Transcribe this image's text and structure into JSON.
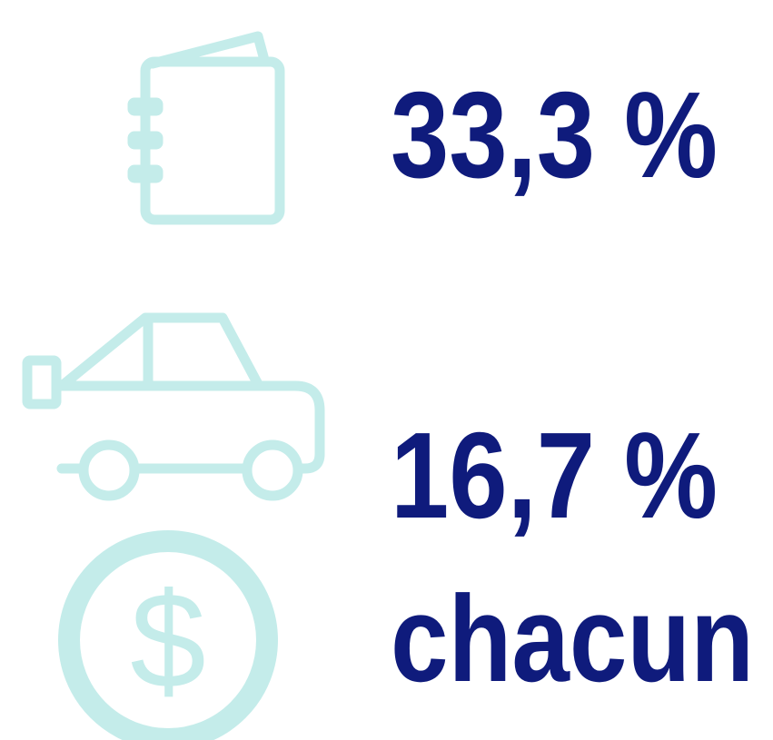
{
  "items": [
    {
      "label": "33,3 %"
    },
    {
      "label": "16,7 %"
    },
    {
      "label": "chacun",
      "symbol": "$"
    }
  ]
}
